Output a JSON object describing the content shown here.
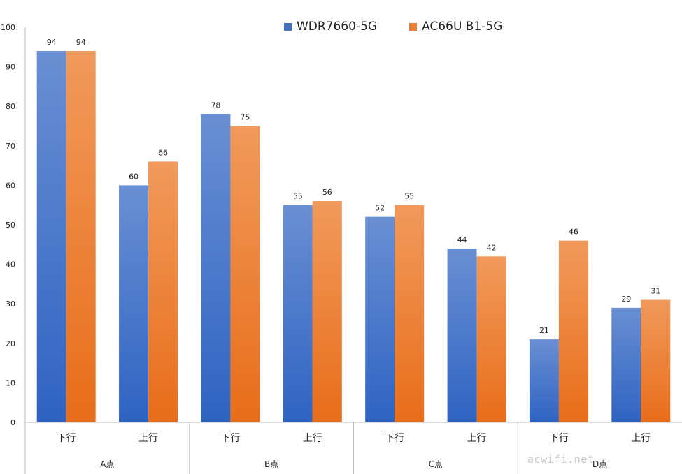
{
  "chart_data": {
    "type": "bar",
    "groups": [
      "A点",
      "B点",
      "C点",
      "D点"
    ],
    "subcategories": [
      "下行",
      "上行"
    ],
    "categories": [
      "下行",
      "上行",
      "下行",
      "上行",
      "下行",
      "上行",
      "下行",
      "上行"
    ],
    "series": [
      {
        "name": "WDR7660-5G",
        "values": [
          94,
          60,
          78,
          55,
          52,
          44,
          21,
          29
        ]
      },
      {
        "name": "AC66U B1-5G",
        "values": [
          94,
          66,
          75,
          56,
          55,
          42,
          46,
          31
        ]
      }
    ],
    "ylim": [
      0,
      100
    ],
    "yticks": [
      "0",
      "10",
      "20",
      "30",
      "40",
      "50",
      "60",
      "70",
      "80",
      "90",
      "100"
    ],
    "legend": "top-center",
    "grid": false
  },
  "colors": {
    "series1_top": "#6a8fd3",
    "series1_bottom": "#2f63c2",
    "series2_top": "#f19a5c",
    "series2_bottom": "#e86d1a"
  },
  "watermark": "acwifi.net"
}
